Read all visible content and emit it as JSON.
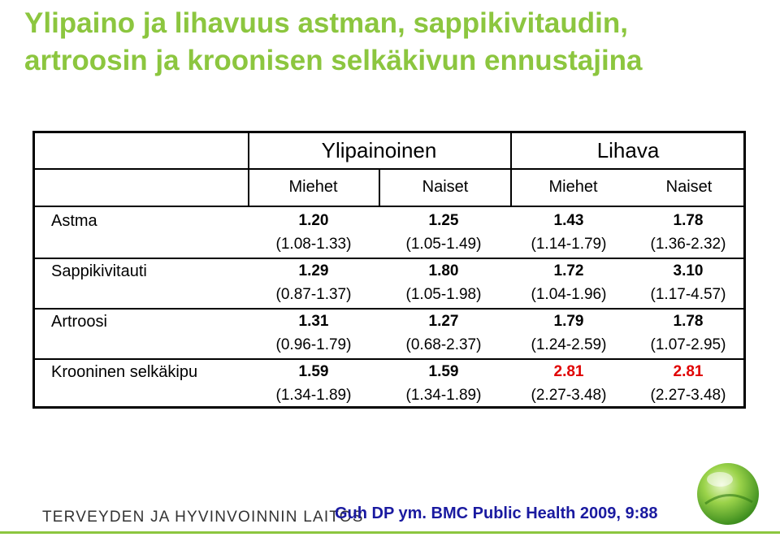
{
  "title": "Ylipaino ja lihavuus astman, sappikivitaudin, artroosin ja kroonisen selkäkivun ennustajina",
  "table": {
    "groups": [
      "Ylipainoinen",
      "Lihava"
    ],
    "subheaders": [
      "Miehet",
      "Naiset",
      "Miehet",
      "Naiset"
    ],
    "rows": [
      {
        "label": "Astma",
        "values": [
          "1.20",
          "1.25",
          "1.43",
          "1.78"
        ],
        "cis": [
          "(1.08-1.33)",
          "(1.05-1.49)",
          "(1.14-1.79)",
          "(1.36-2.32)"
        ]
      },
      {
        "label": "Sappikivitauti",
        "values": [
          "1.29",
          "1.80",
          "1.72",
          "3.10"
        ],
        "cis": [
          "(0.87-1.37)",
          "(1.05-1.98)",
          "(1.04-1.96)",
          "(1.17-4.57)"
        ]
      },
      {
        "label": "Artroosi",
        "values": [
          "1.31",
          "1.27",
          "1.79",
          "1.78"
        ],
        "cis": [
          "(0.96-1.79)",
          "(0.68-2.37)",
          "(1.24-2.59)",
          "(1.07-2.95)"
        ]
      },
      {
        "label": "Krooninen selkäkipu",
        "values": [
          "1.59",
          "1.59",
          "2.81",
          "2.81"
        ],
        "cis": [
          "(1.34-1.89)",
          "(1.34-1.89)",
          "(2.27-3.48)",
          "(2.27-3.48)"
        ]
      }
    ],
    "highlight_color": "#e00000"
  },
  "footer": {
    "institution": "TERVEYDEN JA HYVINVOINNIN LAITOS",
    "citation": "Guh DP ym. BMC Public Health 2009, 9:88"
  },
  "colors": {
    "accent": "#8cc63f",
    "citation": "#1a1aa0"
  }
}
